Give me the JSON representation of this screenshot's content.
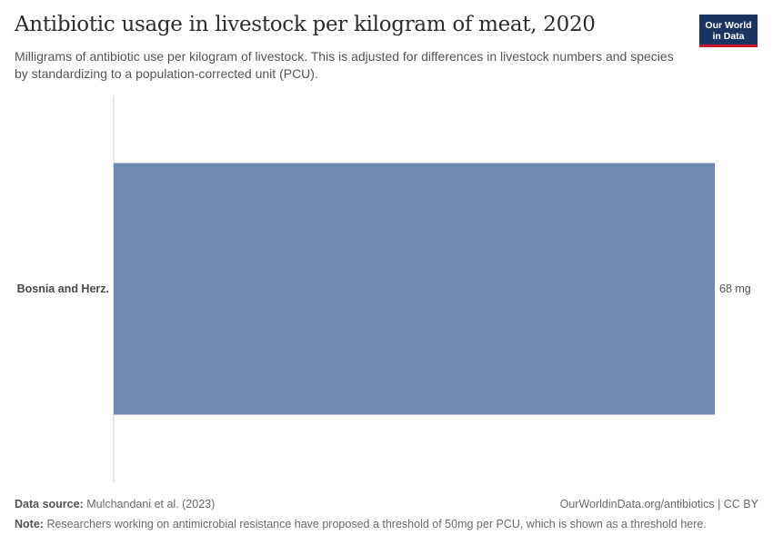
{
  "header": {
    "title": "Antibiotic usage in livestock per kilogram of meat, 2020",
    "subtitle": "Milligrams of antibiotic use per kilogram of livestock. This is adjusted for differences in livestock numbers and species by standardizing to a population-corrected unit (PCU).",
    "logo_line1": "Our World",
    "logo_line2": "in Data"
  },
  "footer": {
    "source_label": "Data source:",
    "source_text": "Mulchandani et al. (2023)",
    "url_text": "OurWorldinData.org/antibiotics | CC BY",
    "note_label": "Note:",
    "note_text": "Researchers working on antimicrobial resistance have proposed a threshold of 50mg per PCU, which is shown as a threshold here."
  },
  "colors": {
    "bar": "#6f89b0",
    "axis": "#cccccc",
    "logo_bg": "#1a3561",
    "logo_accent": "#c8192c"
  },
  "chart_data": {
    "type": "bar",
    "orientation": "horizontal",
    "categories": [
      "Bosnia and Herz."
    ],
    "values": [
      68
    ],
    "value_labels": [
      "68 mg"
    ],
    "unit": "mg",
    "xlim": [
      0,
      68
    ]
  }
}
